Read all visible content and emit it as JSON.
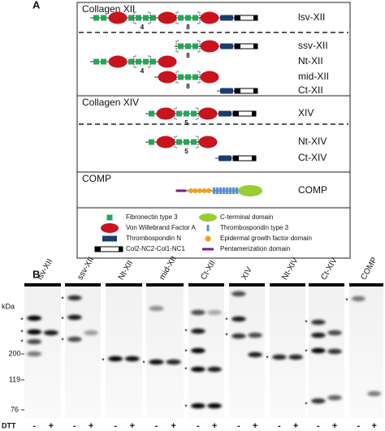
{
  "panel_a": {
    "label": "A",
    "sections": [
      {
        "title": "Collagen XII",
        "constructs": [
          {
            "name": "lsv-XII",
            "annotations": [
              4,
              8
            ]
          },
          {
            "name": "ssv-XII",
            "annotations": [
              8
            ]
          },
          {
            "name": "Nt-XII",
            "annotations": [
              4
            ]
          },
          {
            "name": "mid-XII",
            "annotations": [
              8
            ]
          },
          {
            "name": "Ct-XII",
            "annotations": []
          }
        ]
      },
      {
        "title": "Collagen XIV",
        "constructs": [
          {
            "name": "XIV",
            "annotations": [
              5
            ]
          },
          {
            "name": "Nt-XIV",
            "annotations": [
              5
            ]
          },
          {
            "name": "Ct-XIV",
            "annotations": []
          }
        ]
      },
      {
        "title": "COMP",
        "constructs": [
          {
            "name": "COMP",
            "annotations": []
          }
        ]
      }
    ],
    "legend": [
      "Fibronectin type 3",
      "Von Willebrand Factor A",
      "Thrombospondin N",
      "Col2-NC2-Col1-NC1",
      "C-terminal domain",
      "Thrombospondin type 3",
      "Epidermal growth factor domain",
      "Pentamerization domain"
    ]
  },
  "panel_b": {
    "label": "B",
    "unit": "kDa",
    "markers": [
      "200",
      "119",
      "76"
    ],
    "lanes": [
      "lsv-XII",
      "ssv-XII",
      "Nt-XII",
      "mid-XII",
      "Ct-XII",
      "XIV",
      "Nt-XIV",
      "Ct-XIV",
      "COMP"
    ],
    "band_mark": "*",
    "dtt_label": "DTT",
    "dtt_signs": [
      "-",
      "+"
    ]
  }
}
